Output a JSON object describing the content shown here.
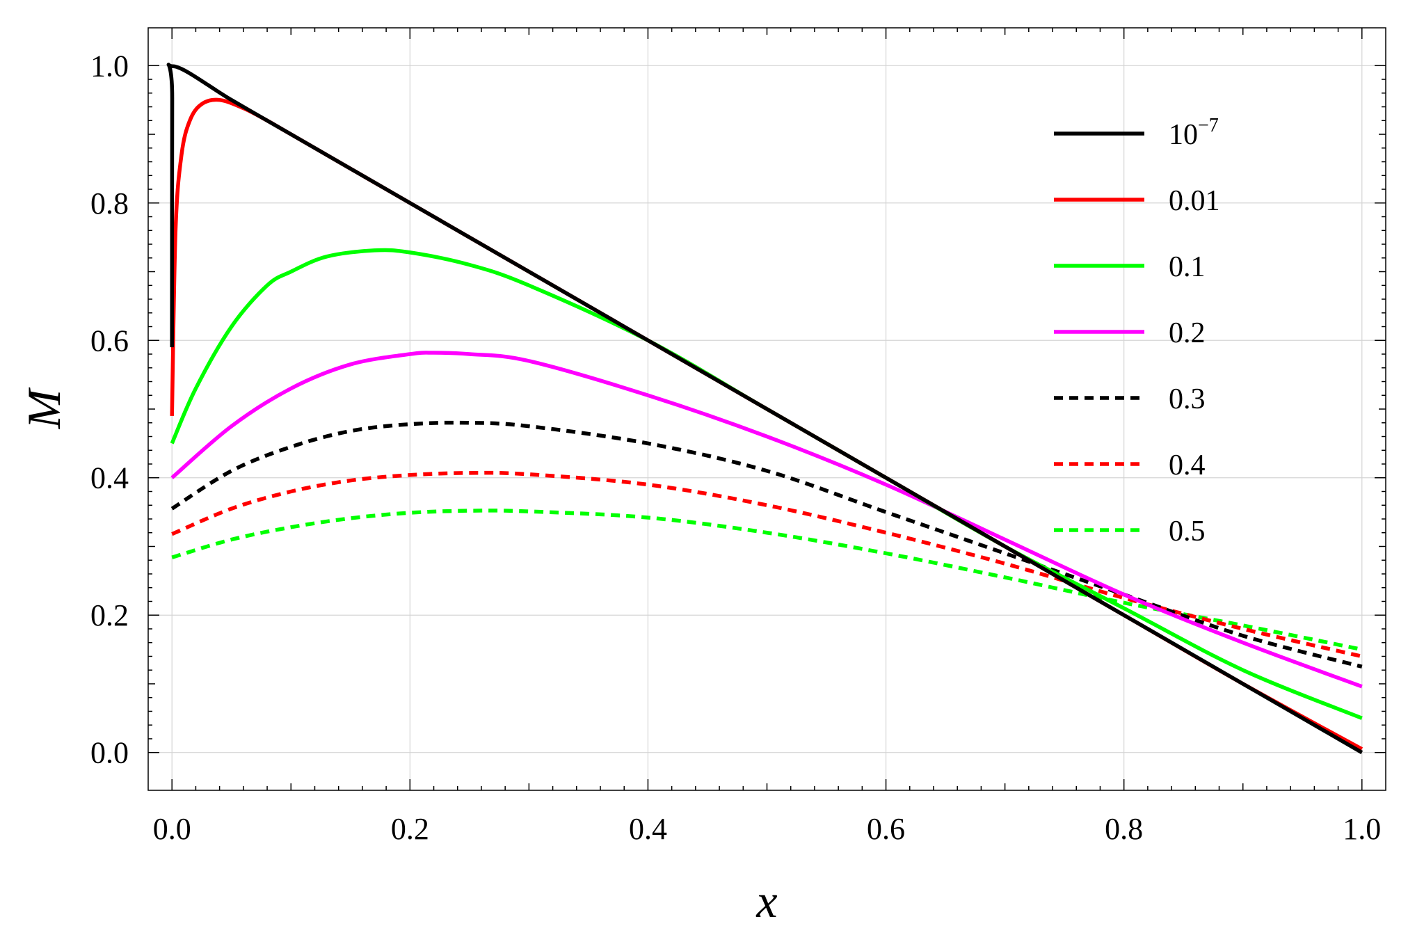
{
  "chart_data": {
    "type": "line",
    "xlabel": "x",
    "ylabel": "M",
    "xlim": [
      -0.02,
      1.02
    ],
    "ylim": [
      -0.055,
      1.055
    ],
    "x_ticks": [
      0.0,
      0.2,
      0.4,
      0.6,
      0.8,
      1.0
    ],
    "x_tick_labels": [
      "0.0",
      "0.2",
      "0.4",
      "0.6",
      "0.8",
      "1.0"
    ],
    "y_ticks": [
      0.0,
      0.2,
      0.4,
      0.6,
      0.8,
      1.0
    ],
    "y_tick_labels": [
      "0.0",
      "0.2",
      "0.4",
      "0.6",
      "0.8",
      "1.0"
    ],
    "grid": true,
    "legend_position": "top-right",
    "series": [
      {
        "name": "10",
        "name_superscript": "−7",
        "color": "#000000",
        "dashed": false,
        "x": [
          0.0,
          0.0002,
          0.001,
          0.05,
          0.1,
          0.2,
          0.3,
          0.4,
          0.5,
          0.6,
          0.7,
          0.8,
          0.9,
          1.0
        ],
        "y": [
          0.59,
          0.95,
          0.999,
          0.95,
          0.9,
          0.8,
          0.7,
          0.6,
          0.5,
          0.4,
          0.3,
          0.2,
          0.1,
          0.0
        ]
      },
      {
        "name": "0.01",
        "color": "#ff0000",
        "dashed": false,
        "x": [
          0.0,
          0.003,
          0.008,
          0.015,
          0.025,
          0.04,
          0.06,
          0.08,
          0.1,
          0.2,
          0.3,
          0.4,
          0.5,
          0.6,
          0.7,
          0.8,
          0.9,
          1.0
        ],
        "y": [
          0.49,
          0.76,
          0.87,
          0.92,
          0.944,
          0.95,
          0.938,
          0.92,
          0.9,
          0.8,
          0.7,
          0.6,
          0.5,
          0.4,
          0.3,
          0.2,
          0.1,
          0.005
        ]
      },
      {
        "name": "0.1",
        "color": "#00ff00",
        "dashed": false,
        "x": [
          0.0,
          0.02,
          0.05,
          0.08,
          0.1,
          0.13,
          0.17,
          0.2,
          0.25,
          0.3,
          0.4,
          0.5,
          0.6,
          0.7,
          0.8,
          0.9,
          1.0
        ],
        "y": [
          0.45,
          0.53,
          0.62,
          0.68,
          0.7,
          0.722,
          0.731,
          0.728,
          0.71,
          0.68,
          0.6,
          0.5,
          0.4,
          0.3,
          0.21,
          0.12,
          0.05
        ]
      },
      {
        "name": "0.2",
        "color": "#ff00ff",
        "dashed": false,
        "x": [
          0.0,
          0.05,
          0.1,
          0.15,
          0.2,
          0.22,
          0.25,
          0.3,
          0.4,
          0.5,
          0.6,
          0.7,
          0.8,
          0.9,
          1.0
        ],
        "y": [
          0.4,
          0.475,
          0.53,
          0.565,
          0.58,
          0.582,
          0.58,
          0.57,
          0.52,
          0.46,
          0.39,
          0.31,
          0.23,
          0.16,
          0.096
        ]
      },
      {
        "name": "0.3",
        "color": "#000000",
        "dashed": true,
        "x": [
          0.0,
          0.05,
          0.1,
          0.15,
          0.2,
          0.25,
          0.3,
          0.4,
          0.5,
          0.6,
          0.7,
          0.8,
          0.9,
          1.0
        ],
        "y": [
          0.355,
          0.41,
          0.445,
          0.468,
          0.478,
          0.48,
          0.475,
          0.45,
          0.41,
          0.35,
          0.29,
          0.23,
          0.17,
          0.125
        ]
      },
      {
        "name": "0.4",
        "color": "#ff0000",
        "dashed": true,
        "x": [
          0.0,
          0.05,
          0.1,
          0.15,
          0.2,
          0.25,
          0.3,
          0.4,
          0.5,
          0.6,
          0.7,
          0.8,
          0.9,
          1.0
        ],
        "y": [
          0.318,
          0.355,
          0.38,
          0.396,
          0.404,
          0.407,
          0.405,
          0.39,
          0.36,
          0.32,
          0.275,
          0.225,
          0.18,
          0.14
        ]
      },
      {
        "name": "0.5",
        "color": "#00ff00",
        "dashed": true,
        "x": [
          0.0,
          0.05,
          0.1,
          0.15,
          0.2,
          0.25,
          0.3,
          0.4,
          0.5,
          0.6,
          0.7,
          0.8,
          0.9,
          1.0
        ],
        "y": [
          0.284,
          0.31,
          0.328,
          0.341,
          0.349,
          0.352,
          0.351,
          0.342,
          0.32,
          0.29,
          0.255,
          0.218,
          0.185,
          0.15
        ]
      }
    ]
  }
}
